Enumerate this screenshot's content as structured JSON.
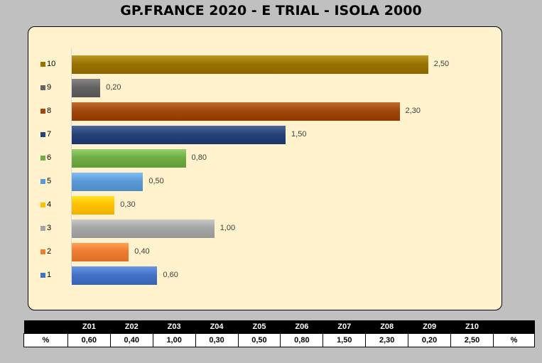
{
  "title": "GP.FRANCE 2020 - E TRIAL - ISOLA 2000",
  "chart_data": {
    "type": "bar",
    "orientation": "horizontal",
    "categories": [
      "1",
      "2",
      "3",
      "4",
      "5",
      "6",
      "7",
      "8",
      "9",
      "10"
    ],
    "values": [
      0.6,
      0.4,
      1.0,
      0.3,
      0.5,
      0.8,
      1.5,
      2.3,
      0.2,
      2.5
    ],
    "value_labels": [
      "0,60",
      "0,40",
      "1,00",
      "0,30",
      "0,50",
      "0,80",
      "1,50",
      "2,30",
      "0,20",
      "2,50"
    ],
    "colors": [
      "#4472c4",
      "#ed7d31",
      "#a5a5a5",
      "#ffc000",
      "#5b9bd5",
      "#70ad47",
      "#264478",
      "#9e480e",
      "#636363",
      "#997300"
    ],
    "xlim": [
      0,
      2.85
    ],
    "legend_position": "left",
    "grid": false
  },
  "table": {
    "headers": [
      "",
      "Z01",
      "Z02",
      "Z03",
      "Z04",
      "Z05",
      "Z06",
      "Z07",
      "Z08",
      "Z09",
      "Z10",
      ""
    ],
    "row": [
      "%",
      "0,60",
      "0,40",
      "1,00",
      "0,30",
      "0,50",
      "0,80",
      "1,50",
      "2,30",
      "0,20",
      "2,50",
      "%"
    ]
  }
}
